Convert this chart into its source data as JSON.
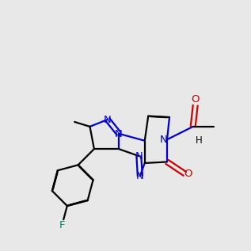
{
  "bg_color": "#e8e8e8",
  "bond_color": "#000000",
  "N_color": "#0000cc",
  "O_color": "#cc0000",
  "F_color": "#008866",
  "lw": 1.6,
  "dbo": 0.012
}
